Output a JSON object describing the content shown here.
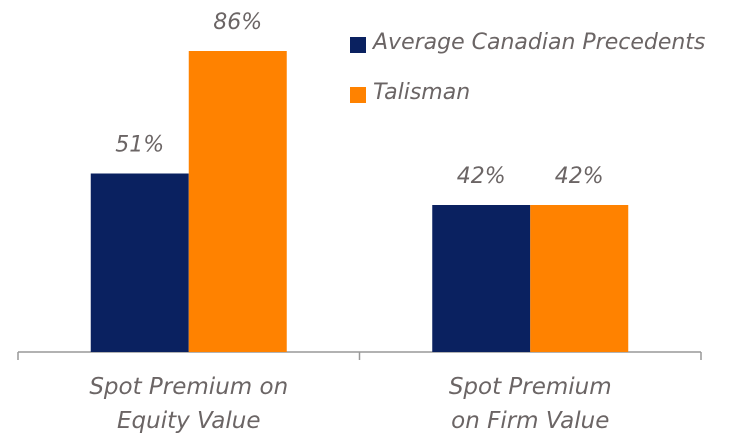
{
  "chart_data": {
    "type": "bar",
    "categories": [
      "Spot Premium on\nEquity Value",
      "Spot Premium\non Firm Value"
    ],
    "series": [
      {
        "name": "Average Canadian Precedents",
        "color": "#0a2160",
        "values": [
          51,
          42
        ],
        "value_labels": [
          "51%",
          "42%"
        ]
      },
      {
        "name": "Talisman",
        "color": "#ff8200",
        "values": [
          86,
          42
        ],
        "value_labels": [
          "86%",
          "42%"
        ]
      }
    ]
  }
}
